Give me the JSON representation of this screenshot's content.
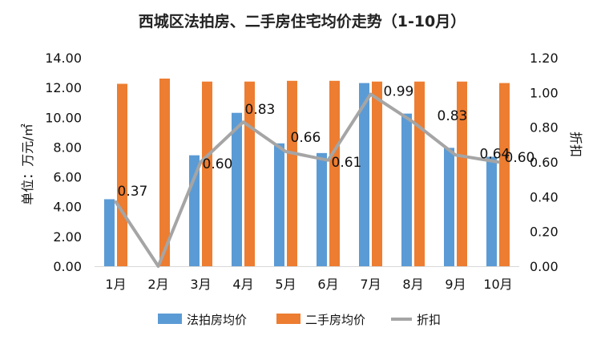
{
  "chart_data": {
    "type": "bar",
    "title": "西城区法拍房、二手房住宅均价走势（1-10月）",
    "ylabel": "单位：万元/㎡",
    "y2label": "折扣",
    "categories": [
      "1月",
      "2月",
      "3月",
      "4月",
      "5月",
      "6月",
      "7月",
      "8月",
      "9月",
      "10月"
    ],
    "ylim": [
      0,
      14
    ],
    "y_ticks": [
      "0.00",
      "2.00",
      "4.00",
      "6.00",
      "8.00",
      "10.00",
      "12.00",
      "14.00"
    ],
    "y2lim": [
      0,
      1.2
    ],
    "y2_ticks": [
      "0.00",
      "0.20",
      "0.40",
      "0.60",
      "0.80",
      "1.00",
      "1.20"
    ],
    "grid": false,
    "legend_position": "bottom",
    "series": [
      {
        "name": "法拍房均价",
        "type": "bar",
        "axis": "left",
        "color": "#5b9bd5",
        "values": [
          4.5,
          0,
          7.45,
          10.3,
          8.25,
          7.6,
          12.3,
          10.25,
          7.95,
          7.35
        ]
      },
      {
        "name": "二手房均价",
        "type": "bar",
        "axis": "left",
        "color": "#ed7d31",
        "values": [
          12.25,
          12.6,
          12.4,
          12.4,
          12.45,
          12.45,
          12.4,
          12.4,
          12.4,
          12.3
        ]
      },
      {
        "name": "折扣",
        "type": "line",
        "axis": "right",
        "color": "#a5a5a5",
        "values": [
          0.37,
          0,
          0.6,
          0.83,
          0.66,
          0.61,
          0.99,
          0.83,
          0.64,
          0.6
        ]
      }
    ],
    "data_labels": [
      "0.37",
      "",
      "0.60",
      "0.83",
      "0.66",
      "0.61",
      "0.99",
      "0.83",
      "0.64",
      "0.60"
    ]
  }
}
